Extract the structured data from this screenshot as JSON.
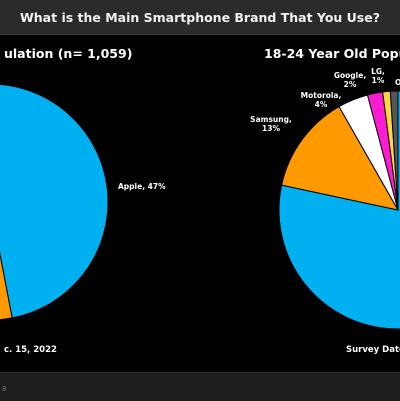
{
  "header": {
    "title": "What is the Main Smartphone Brand That You Use?"
  },
  "left_panel": {
    "title": "ulation (n= 1,059)",
    "note": "c. 15, 2022"
  },
  "right_panel": {
    "title": "18-24 Year Old Popu",
    "note": "Survey Date"
  },
  "footer": {
    "mark": "8"
  },
  "chart_data": [
    {
      "type": "pie",
      "title": "ulation (n= 1,059)",
      "slices": [
        {
          "label": "Apple, 47%",
          "value": 47,
          "color": "#00b0f0"
        },
        {
          "label": "",
          "value": 53,
          "color": "#ff9900"
        }
      ]
    },
    {
      "type": "pie",
      "title": "18-24 Year Old Popu",
      "slices": [
        {
          "label": "",
          "value": 76,
          "color": "#00b0f0"
        },
        {
          "label": "Samsung, 13%",
          "value": 13,
          "color": "#ff9900"
        },
        {
          "label": "Motorola, 4%",
          "value": 4,
          "color": "#ffffff"
        },
        {
          "label": "Google, 2%",
          "value": 2,
          "color": "#ff1bd1"
        },
        {
          "label": "LG, 1%",
          "value": 1,
          "color": "#ffd740"
        },
        {
          "label": "O",
          "value": 1,
          "color": "#555555"
        }
      ]
    }
  ]
}
